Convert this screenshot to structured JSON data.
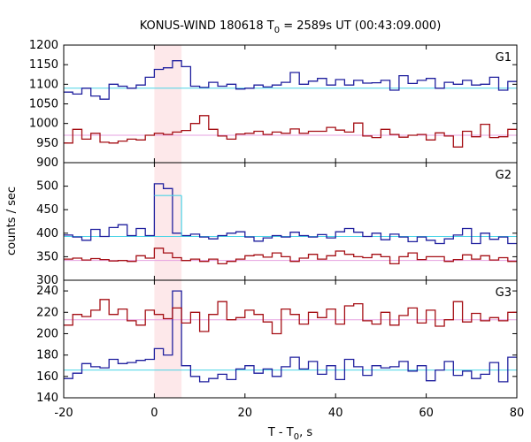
{
  "chart_data": {
    "type": "line",
    "title_main": "KONUS-WIND 180618 T",
    "title_sub": "0",
    "title_rest": " = 2589s UT (00:43:09.000)",
    "xlabel_main": "T - T",
    "xlabel_sub": "0",
    "xlabel_rest": ", s",
    "ylabel": "counts / sec",
    "xlim": [
      -20,
      80
    ],
    "x_ticks": [
      "-20",
      "0",
      "20",
      "40",
      "60",
      "80"
    ],
    "highlight_interval": [
      0,
      6
    ],
    "colors": {
      "blue": "#1f1f9e",
      "red": "#a50f15",
      "bg_line": "#4ad4e6",
      "bg_line_red": "#e6a0e0",
      "highlight": "#fde8ea"
    },
    "panels": [
      {
        "label": "G1",
        "ylim": [
          900,
          1200
        ],
        "y_ticks": [
          "900",
          "950",
          "1000",
          "1050",
          "1100",
          "1150",
          "1200"
        ],
        "background_blue": 1090,
        "background_red": 970,
        "series": [
          {
            "color": "blue",
            "start": -20,
            "step": 2,
            "values": [
              1080,
              1075,
              1090,
              1070,
              1062,
              1100,
              1095,
              1090,
              1098,
              1118,
              1138,
              1142,
              1160,
              1145,
              1095,
              1092,
              1105,
              1095,
              1100,
              1088,
              1090,
              1098,
              1093,
              1098,
              1105,
              1130,
              1100,
              1108,
              1115,
              1098,
              1112,
              1098,
              1110,
              1103,
              1104,
              1110,
              1085,
              1122,
              1102,
              1110,
              1115,
              1090,
              1105,
              1100,
              1110,
              1098,
              1100,
              1118,
              1085,
              1107
            ]
          },
          {
            "color": "red",
            "start": -20,
            "step": 2,
            "values": [
              950,
              985,
              960,
              975,
              952,
              950,
              955,
              960,
              958,
              970,
              975,
              972,
              978,
              982,
              1000,
              1020,
              985,
              968,
              960,
              973,
              975,
              980,
              972,
              978,
              975,
              986,
              975,
              980,
              980,
              990,
              983,
              978,
              1001,
              968,
              964,
              985,
              972,
              965,
              970,
              972,
              958,
              976,
              968,
              940,
              980,
              966,
              998,
              964,
              966,
              985
            ]
          }
        ]
      },
      {
        "label": "G2",
        "ylim": [
          300,
          550
        ],
        "y_ticks": [
          "300",
          "350",
          "400",
          "450",
          "500"
        ],
        "background_blue": 393,
        "background_red": 342,
        "series": [
          {
            "color": "blue",
            "start": -20,
            "step": 2,
            "values": [
              396,
              392,
              385,
              408,
              393,
              412,
              418,
              395,
              410,
              395,
              505,
              495,
              400,
              395,
              398,
              392,
              388,
              395,
              400,
              403,
              392,
              383,
              390,
              395,
              392,
              402,
              395,
              392,
              397,
              390,
              403,
              410,
              402,
              393,
              400,
              386,
              398,
              392,
              382,
              392,
              385,
              378,
              388,
              396,
              410,
              378,
              400,
              387,
              392,
              378
            ]
          },
          {
            "color": "red",
            "start": -20,
            "step": 2,
            "values": [
              345,
              347,
              343,
              346,
              344,
              341,
              342,
              340,
              352,
              347,
              368,
              358,
              348,
              342,
              345,
              340,
              345,
              335,
              340,
              345,
              352,
              354,
              349,
              358,
              350,
              340,
              347,
              355,
              345,
              352,
              362,
              355,
              350,
              348,
              355,
              350,
              335,
              350,
              358,
              344,
              350,
              350,
              340,
              344,
              354,
              345,
              352,
              343,
              348,
              340
            ]
          },
          {
            "color": "bg_line",
            "start": 0,
            "step": 3,
            "values": [
              480,
              480
            ]
          }
        ]
      },
      {
        "label": "G3",
        "ylim": [
          140,
          250
        ],
        "y_ticks": [
          "140",
          "160",
          "180",
          "200",
          "220",
          "240"
        ],
        "background_blue": 166,
        "background_red": 213,
        "series": [
          {
            "color": "blue",
            "start": -20,
            "step": 2,
            "values": [
              158,
              163,
              172,
              169,
              168,
              176,
              172,
              173,
              175,
              176,
              186,
              180,
              240,
              170,
              160,
              155,
              158,
              162,
              157,
              167,
              170,
              163,
              167,
              160,
              169,
              178,
              167,
              174,
              162,
              170,
              157,
              176,
              169,
              161,
              170,
              168,
              169,
              174,
              165,
              170,
              156,
              166,
              174,
              161,
              165,
              158,
              162,
              173,
              155,
              178
            ]
          },
          {
            "color": "red",
            "start": -20,
            "step": 2,
            "values": [
              208,
              218,
              216,
              222,
              232,
              218,
              223,
              212,
              208,
              222,
              218,
              214,
              224,
              210,
              220,
              202,
              218,
              230,
              213,
              215,
              222,
              218,
              211,
              200,
              223,
              218,
              209,
              220,
              215,
              223,
              209,
              226,
              228,
              212,
              209,
              220,
              208,
              217,
              224,
              210,
              222,
              207,
              213,
              230,
              211,
              219,
              212,
              215,
              212,
              220
            ]
          }
        ]
      }
    ]
  }
}
